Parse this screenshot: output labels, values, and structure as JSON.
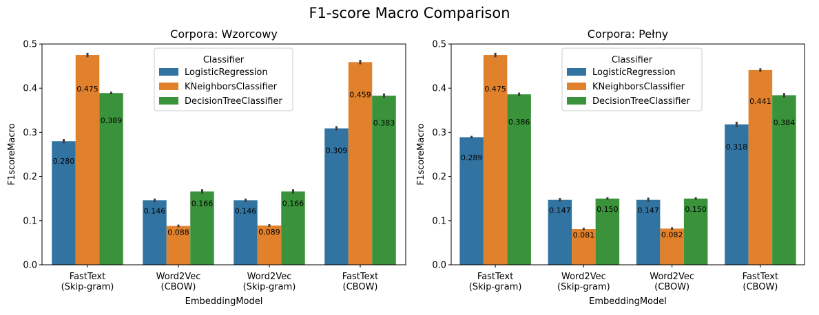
{
  "figure": {
    "title": "F1-score Macro Comparison"
  },
  "legend_title": "Classifier",
  "colors": {
    "LogisticRegression": "#3274a1",
    "KNeighborsClassifier": "#e1812c",
    "DecisionTreeClassifier": "#3a923a",
    "errorbar": "#3c3c3c"
  },
  "chart_data": [
    {
      "type": "bar",
      "title": "Corpora: Wzorcowy",
      "xlabel": "EmbeddingModel",
      "ylabel": "F1scoreMacro",
      "ylim": [
        0,
        0.5
      ],
      "yticks": [
        "0.0",
        "0.1",
        "0.2",
        "0.3",
        "0.4",
        "0.5"
      ],
      "legend_position": "upper center",
      "categories": [
        [
          "FastText",
          "(Skip-gram)"
        ],
        [
          "Word2Vec",
          "(CBOW)"
        ],
        [
          "Word2Vec",
          "(Skip-gram)"
        ],
        [
          "FastText",
          "(CBOW)"
        ]
      ],
      "series": [
        {
          "name": "LogisticRegression",
          "values": [
            0.28,
            0.146,
            0.146,
            0.309
          ],
          "labels": [
            "0.280",
            "0.146",
            "0.146",
            "0.309"
          ],
          "err": [
            0.005,
            0.004,
            0.004,
            0.005
          ]
        },
        {
          "name": "KNeighborsClassifier",
          "values": [
            0.475,
            0.088,
            0.089,
            0.459
          ],
          "labels": [
            "0.475",
            "0.088",
            "0.089",
            "0.459"
          ],
          "err": [
            0.005,
            0.003,
            0.003,
            0.005
          ]
        },
        {
          "name": "DecisionTreeClassifier",
          "values": [
            0.389,
            0.166,
            0.166,
            0.383
          ],
          "labels": [
            "0.389",
            "0.166",
            "0.166",
            "0.383"
          ],
          "err": [
            0.003,
            0.005,
            0.005,
            0.005
          ]
        }
      ]
    },
    {
      "type": "bar",
      "title": "Corpora: Pełny",
      "xlabel": "EmbeddingModel",
      "ylabel": "F1scoreMacro",
      "ylim": [
        0,
        0.5
      ],
      "yticks": [
        "0.0",
        "0.1",
        "0.2",
        "0.3",
        "0.4",
        "0.5"
      ],
      "legend_position": "upper center",
      "categories": [
        [
          "FastText",
          "(Skip-gram)"
        ],
        [
          "Word2Vec",
          "(Skip-gram)"
        ],
        [
          "Word2Vec",
          "(CBOW)"
        ],
        [
          "FastText",
          "(CBOW)"
        ]
      ],
      "series": [
        {
          "name": "LogisticRegression",
          "values": [
            0.289,
            0.147,
            0.147,
            0.318
          ],
          "labels": [
            "0.289",
            "0.147",
            "0.147",
            "0.318"
          ],
          "err": [
            0.003,
            0.004,
            0.005,
            0.006
          ]
        },
        {
          "name": "KNeighborsClassifier",
          "values": [
            0.475,
            0.081,
            0.082,
            0.441
          ],
          "labels": [
            "0.475",
            "0.081",
            "0.082",
            "0.441"
          ],
          "err": [
            0.005,
            0.003,
            0.003,
            0.004
          ]
        },
        {
          "name": "DecisionTreeClassifier",
          "values": [
            0.386,
            0.15,
            0.15,
            0.384
          ],
          "labels": [
            "0.386",
            "0.150",
            "0.150",
            "0.384"
          ],
          "err": [
            0.004,
            0.003,
            0.003,
            0.005
          ]
        }
      ]
    }
  ]
}
